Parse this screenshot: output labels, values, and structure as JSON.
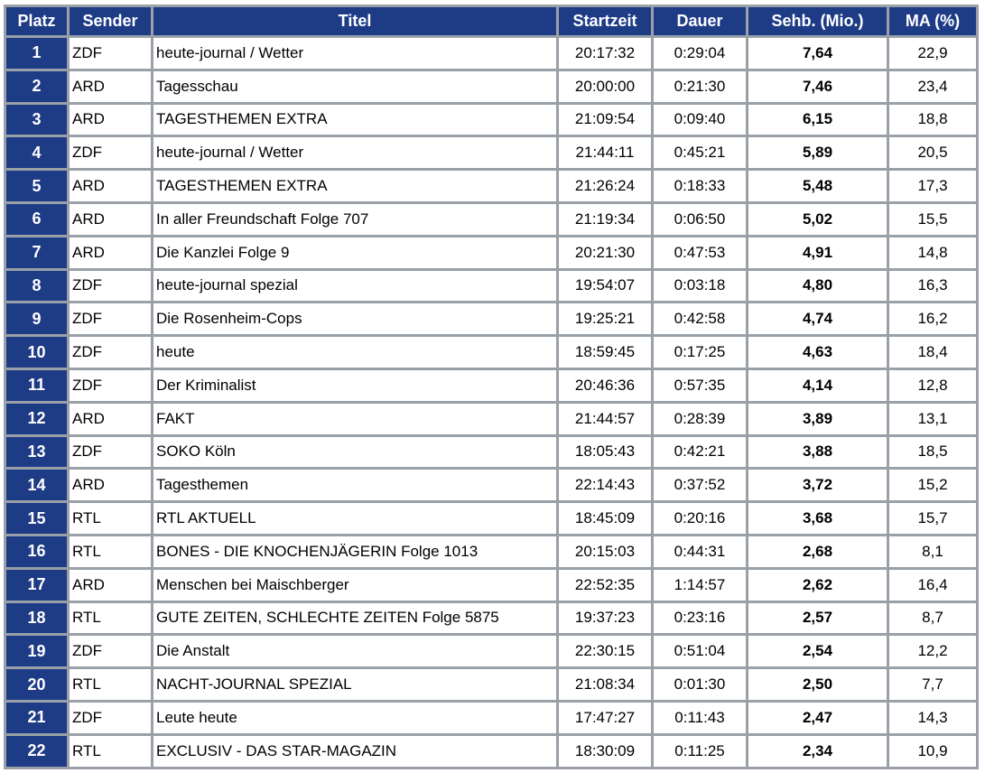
{
  "table": {
    "headers": [
      "Platz",
      "Sender",
      "Titel",
      "Startzeit",
      "Dauer",
      "Sehb. (Mio.)",
      "MA (%)"
    ],
    "rows": [
      {
        "platz": "1",
        "sender": "ZDF",
        "titel": "heute-journal / Wetter",
        "startzeit": "20:17:32",
        "dauer": "0:29:04",
        "sehb": "7,64",
        "ma": "22,9"
      },
      {
        "platz": "2",
        "sender": "ARD",
        "titel": "Tagesschau",
        "startzeit": "20:00:00",
        "dauer": "0:21:30",
        "sehb": "7,46",
        "ma": "23,4"
      },
      {
        "platz": "3",
        "sender": "ARD",
        "titel": "TAGESTHEMEN EXTRA",
        "startzeit": "21:09:54",
        "dauer": "0:09:40",
        "sehb": "6,15",
        "ma": "18,8"
      },
      {
        "platz": "4",
        "sender": "ZDF",
        "titel": "heute-journal / Wetter",
        "startzeit": "21:44:11",
        "dauer": "0:45:21",
        "sehb": "5,89",
        "ma": "20,5"
      },
      {
        "platz": "5",
        "sender": "ARD",
        "titel": "TAGESTHEMEN EXTRA",
        "startzeit": "21:26:24",
        "dauer": "0:18:33",
        "sehb": "5,48",
        "ma": "17,3"
      },
      {
        "platz": "6",
        "sender": "ARD",
        "titel": "In aller Freundschaft Folge 707",
        "startzeit": "21:19:34",
        "dauer": "0:06:50",
        "sehb": "5,02",
        "ma": "15,5"
      },
      {
        "platz": "7",
        "sender": "ARD",
        "titel": "Die Kanzlei Folge 9",
        "startzeit": "20:21:30",
        "dauer": "0:47:53",
        "sehb": "4,91",
        "ma": "14,8"
      },
      {
        "platz": "8",
        "sender": "ZDF",
        "titel": "heute-journal spezial",
        "startzeit": "19:54:07",
        "dauer": "0:03:18",
        "sehb": "4,80",
        "ma": "16,3"
      },
      {
        "platz": "9",
        "sender": "ZDF",
        "titel": "Die Rosenheim-Cops",
        "startzeit": "19:25:21",
        "dauer": "0:42:58",
        "sehb": "4,74",
        "ma": "16,2"
      },
      {
        "platz": "10",
        "sender": "ZDF",
        "titel": "heute",
        "startzeit": "18:59:45",
        "dauer": "0:17:25",
        "sehb": "4,63",
        "ma": "18,4"
      },
      {
        "platz": "11",
        "sender": "ZDF",
        "titel": "Der Kriminalist",
        "startzeit": "20:46:36",
        "dauer": "0:57:35",
        "sehb": "4,14",
        "ma": "12,8"
      },
      {
        "platz": "12",
        "sender": "ARD",
        "titel": "FAKT",
        "startzeit": "21:44:57",
        "dauer": "0:28:39",
        "sehb": "3,89",
        "ma": "13,1"
      },
      {
        "platz": "13",
        "sender": "ZDF",
        "titel": "SOKO Köln",
        "startzeit": "18:05:43",
        "dauer": "0:42:21",
        "sehb": "3,88",
        "ma": "18,5"
      },
      {
        "platz": "14",
        "sender": "ARD",
        "titel": "Tagesthemen",
        "startzeit": "22:14:43",
        "dauer": "0:37:52",
        "sehb": "3,72",
        "ma": "15,2"
      },
      {
        "platz": "15",
        "sender": "RTL",
        "titel": "RTL AKTUELL",
        "startzeit": "18:45:09",
        "dauer": "0:20:16",
        "sehb": "3,68",
        "ma": "15,7"
      },
      {
        "platz": "16",
        "sender": "RTL",
        "titel": "BONES - DIE KNOCHENJÄGERIN Folge 1013",
        "startzeit": "20:15:03",
        "dauer": "0:44:31",
        "sehb": "2,68",
        "ma": "8,1"
      },
      {
        "platz": "17",
        "sender": "ARD",
        "titel": "Menschen bei Maischberger",
        "startzeit": "22:52:35",
        "dauer": "1:14:57",
        "sehb": "2,62",
        "ma": "16,4"
      },
      {
        "platz": "18",
        "sender": "RTL",
        "titel": "GUTE ZEITEN, SCHLECHTE ZEITEN Folge 5875",
        "startzeit": "19:37:23",
        "dauer": "0:23:16",
        "sehb": "2,57",
        "ma": "8,7"
      },
      {
        "platz": "19",
        "sender": "ZDF",
        "titel": "Die Anstalt",
        "startzeit": "22:30:15",
        "dauer": "0:51:04",
        "sehb": "2,54",
        "ma": "12,2"
      },
      {
        "platz": "20",
        "sender": "RTL",
        "titel": "NACHT-JOURNAL SPEZIAL",
        "startzeit": "21:08:34",
        "dauer": "0:01:30",
        "sehb": "2,50",
        "ma": "7,7"
      },
      {
        "platz": "21",
        "sender": "ZDF",
        "titel": "Leute heute",
        "startzeit": "17:47:27",
        "dauer": "0:11:43",
        "sehb": "2,47",
        "ma": "14,3"
      },
      {
        "platz": "22",
        "sender": "RTL",
        "titel": "EXCLUSIV - DAS STAR-MAGAZIN",
        "startzeit": "18:30:09",
        "dauer": "0:11:25",
        "sehb": "2,34",
        "ma": "10,9"
      }
    ]
  },
  "colors": {
    "header_bg": "#1e3b86",
    "header_text": "#ffffff",
    "grid": "#9aa0a8",
    "cell_bg": "#ffffff"
  }
}
